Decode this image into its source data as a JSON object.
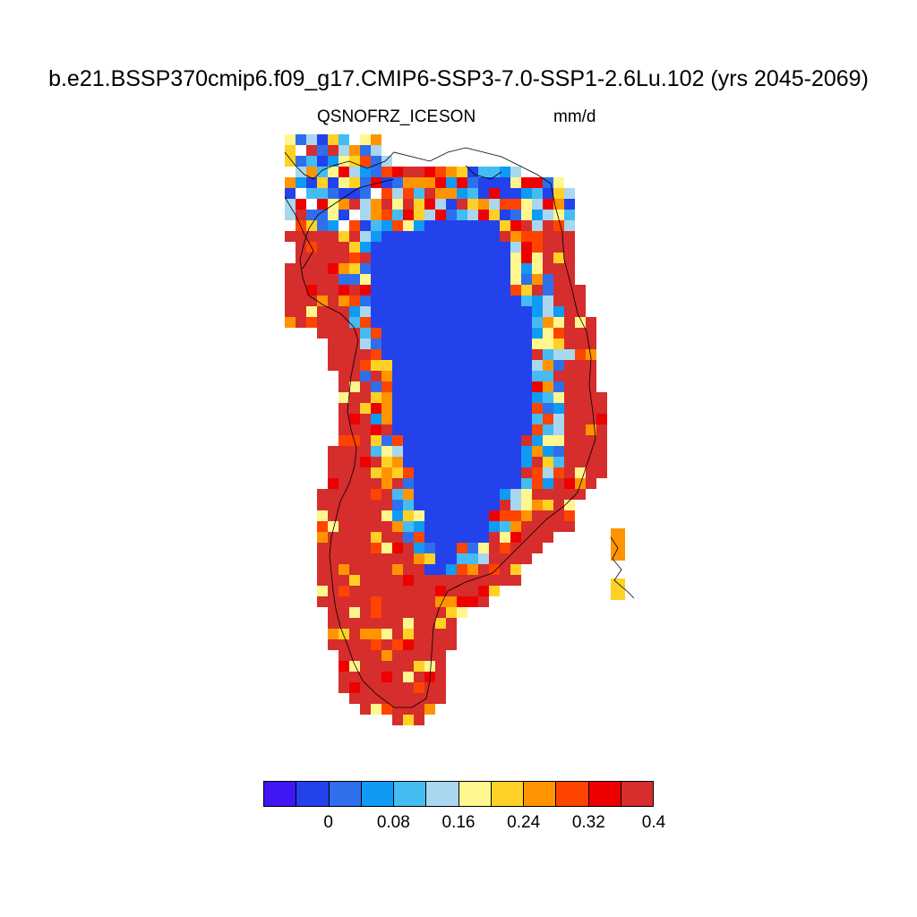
{
  "title": "b.e21.BSSP370cmip6.f09_g17.CMIP6-SSP3-7.0-SSP1-2.6Lu.102 (yrs 2045-2069)",
  "variable": "QSNOFRZ_ICE",
  "season": "SON",
  "units": "mm/d",
  "colorbar": {
    "colors": [
      "#4016f5",
      "#2342eb",
      "#2f6fec",
      "#0f9bf3",
      "#44bcf2",
      "#a8d7ef",
      "#fff68e",
      "#ffd125",
      "#ff9400",
      "#ff4400",
      "#ee0000",
      "#d62d2d"
    ],
    "tick_labels": [
      "0",
      "0.08",
      "0.16",
      "0.24",
      "0.32",
      "0.4"
    ],
    "tick_values": [
      0,
      0.08,
      0.16,
      0.24,
      0.32,
      0.4
    ],
    "levels": [
      -0.04,
      0,
      0.04,
      0.08,
      0.12,
      0.16,
      0.2,
      0.24,
      0.28,
      0.32,
      0.36,
      0.4,
      0.44
    ]
  },
  "map_data": {
    "region": "Greenland",
    "field": "QSNOFRZ_ICE",
    "interior_class": 1,
    "margin_class": 11
  }
}
